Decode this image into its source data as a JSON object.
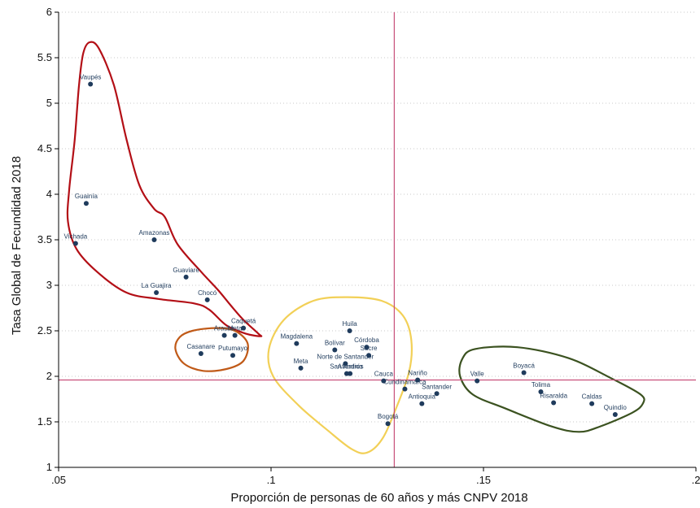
{
  "chart_data": {
    "type": "scatter",
    "title": "",
    "xlabel": "Proporción de personas de 60 años y más CNPV 2018",
    "ylabel": "Tasa Global de Fecundidad 2018",
    "xlim": [
      0.05,
      0.2
    ],
    "ylim": [
      1,
      6
    ],
    "xticks": [
      {
        "value": 0.05,
        "label": ".05"
      },
      {
        "value": 0.1,
        "label": ".1"
      },
      {
        "value": 0.15,
        "label": ".15"
      },
      {
        "value": 0.2,
        "label": ".2"
      }
    ],
    "yticks": [
      {
        "value": 1,
        "label": "1"
      },
      {
        "value": 1.5,
        "label": "1.5"
      },
      {
        "value": 2,
        "label": "2"
      },
      {
        "value": 2.5,
        "label": "2.5"
      },
      {
        "value": 3,
        "label": "3"
      },
      {
        "value": 3.5,
        "label": "3.5"
      },
      {
        "value": 4,
        "label": "4"
      },
      {
        "value": 4.5,
        "label": "4.5"
      },
      {
        "value": 5,
        "label": "5"
      },
      {
        "value": 5.5,
        "label": "5.5"
      },
      {
        "value": 6,
        "label": "6"
      }
    ],
    "grid": "horizontal dotted",
    "reference_lines": {
      "x": 0.129,
      "y": 1.96,
      "color": "#c8507a"
    },
    "marker_color": "#1f3b5c",
    "points": [
      {
        "label": "Vaupés",
        "x": 0.0575,
        "y": 5.21
      },
      {
        "label": "Guainía",
        "x": 0.0565,
        "y": 3.9
      },
      {
        "label": "Vichada",
        "x": 0.054,
        "y": 3.46
      },
      {
        "label": "Amazonas",
        "x": 0.0725,
        "y": 3.5
      },
      {
        "label": "Guaviare",
        "x": 0.08,
        "y": 3.09
      },
      {
        "label": "La Guajira",
        "x": 0.073,
        "y": 2.92
      },
      {
        "label": "Chocó",
        "x": 0.085,
        "y": 2.84
      },
      {
        "label": "Caquetá",
        "x": 0.0935,
        "y": 2.53
      },
      {
        "label": "Arauca",
        "x": 0.089,
        "y": 2.45
      },
      {
        "label": "Meta",
        "x": 0.0915,
        "y": 2.45
      },
      {
        "label": "Casanare",
        "x": 0.0835,
        "y": 2.25
      },
      {
        "label": "Putumayo",
        "x": 0.091,
        "y": 2.23
      },
      {
        "label": "Magdalena",
        "x": 0.106,
        "y": 2.36
      },
      {
        "label": "Meta",
        "x": 0.107,
        "y": 2.09
      },
      {
        "label": "Huila",
        "x": 0.1185,
        "y": 2.5
      },
      {
        "label": "Bolívar",
        "x": 0.115,
        "y": 2.29
      },
      {
        "label": "Córdoba",
        "x": 0.1225,
        "y": 2.32
      },
      {
        "label": "Sucre",
        "x": 0.123,
        "y": 2.23
      },
      {
        "label": "Norte de Santander",
        "x": 0.1175,
        "y": 2.14
      },
      {
        "label": "San Andrés",
        "x": 0.1178,
        "y": 2.03
      },
      {
        "label": "Atlántico",
        "x": 0.1186,
        "y": 2.03
      },
      {
        "label": "Cauca",
        "x": 0.1265,
        "y": 1.95
      },
      {
        "label": "Nariño",
        "x": 0.1345,
        "y": 1.96
      },
      {
        "label": "Cundinamarca",
        "x": 0.1315,
        "y": 1.86
      },
      {
        "label": "Santander",
        "x": 0.139,
        "y": 1.81
      },
      {
        "label": "Antioquia",
        "x": 0.1355,
        "y": 1.7
      },
      {
        "label": "Bogotá",
        "x": 0.1275,
        "y": 1.48
      },
      {
        "label": "Valle",
        "x": 0.1485,
        "y": 1.95
      },
      {
        "label": "Boyacá",
        "x": 0.1595,
        "y": 2.04
      },
      {
        "label": "Tolima",
        "x": 0.1635,
        "y": 1.83
      },
      {
        "label": "Risaralda",
        "x": 0.1665,
        "y": 1.71
      },
      {
        "label": "Caldas",
        "x": 0.1755,
        "y": 1.7
      },
      {
        "label": "Quindío",
        "x": 0.181,
        "y": 1.58
      }
    ],
    "clusters": [
      {
        "name": "red-cluster",
        "color": "#b30f16",
        "outline": [
          [
            0.0573,
            5.67
          ],
          [
            0.0595,
            5.6
          ],
          [
            0.063,
            5.2
          ],
          [
            0.066,
            4.6
          ],
          [
            0.069,
            4.1
          ],
          [
            0.0725,
            3.84
          ],
          [
            0.075,
            3.75
          ],
          [
            0.078,
            3.45
          ],
          [
            0.0835,
            3.15
          ],
          [
            0.0875,
            2.95
          ],
          [
            0.0905,
            2.78
          ],
          [
            0.0935,
            2.62
          ],
          [
            0.097,
            2.47
          ],
          [
            0.0975,
            2.44
          ],
          [
            0.094,
            2.47
          ],
          [
            0.0895,
            2.56
          ],
          [
            0.0855,
            2.73
          ],
          [
            0.082,
            2.8
          ],
          [
            0.0735,
            2.85
          ],
          [
            0.066,
            2.92
          ],
          [
            0.059,
            3.15
          ],
          [
            0.0542,
            3.4
          ],
          [
            0.0522,
            3.7
          ],
          [
            0.0525,
            4.05
          ],
          [
            0.0538,
            4.6
          ],
          [
            0.0548,
            5.2
          ],
          [
            0.0558,
            5.55
          ],
          [
            0.0573,
            5.67
          ]
        ]
      },
      {
        "name": "orange-cluster",
        "color": "#c05a18",
        "outline": [
          [
            0.0815,
            2.5
          ],
          [
            0.087,
            2.53
          ],
          [
            0.0915,
            2.5
          ],
          [
            0.0945,
            2.36
          ],
          [
            0.0935,
            2.17
          ],
          [
            0.0895,
            2.08
          ],
          [
            0.084,
            2.06
          ],
          [
            0.0795,
            2.14
          ],
          [
            0.0775,
            2.3
          ],
          [
            0.0785,
            2.43
          ],
          [
            0.0815,
            2.5
          ]
        ]
      },
      {
        "name": "yellow-cluster",
        "color": "#f2d057",
        "outline": [
          [
            0.118,
            2.87
          ],
          [
            0.126,
            2.83
          ],
          [
            0.131,
            2.67
          ],
          [
            0.133,
            2.4
          ],
          [
            0.1325,
            2.05
          ],
          [
            0.129,
            1.6
          ],
          [
            0.126,
            1.3
          ],
          [
            0.1225,
            1.16
          ],
          [
            0.119,
            1.2
          ],
          [
            0.1135,
            1.4
          ],
          [
            0.1065,
            1.68
          ],
          [
            0.1005,
            2.0
          ],
          [
            0.0995,
            2.3
          ],
          [
            0.103,
            2.62
          ],
          [
            0.11,
            2.83
          ],
          [
            0.118,
            2.87
          ]
        ]
      },
      {
        "name": "green-cluster",
        "color": "#3b5220",
        "outline": [
          [
            0.148,
            2.3
          ],
          [
            0.158,
            2.32
          ],
          [
            0.17,
            2.2
          ],
          [
            0.18,
            1.98
          ],
          [
            0.187,
            1.8
          ],
          [
            0.1875,
            1.7
          ],
          [
            0.185,
            1.6
          ],
          [
            0.1775,
            1.45
          ],
          [
            0.1725,
            1.39
          ],
          [
            0.166,
            1.45
          ],
          [
            0.155,
            1.65
          ],
          [
            0.1475,
            1.8
          ],
          [
            0.1445,
            2.0
          ],
          [
            0.145,
            2.19
          ],
          [
            0.148,
            2.3
          ]
        ]
      }
    ]
  }
}
